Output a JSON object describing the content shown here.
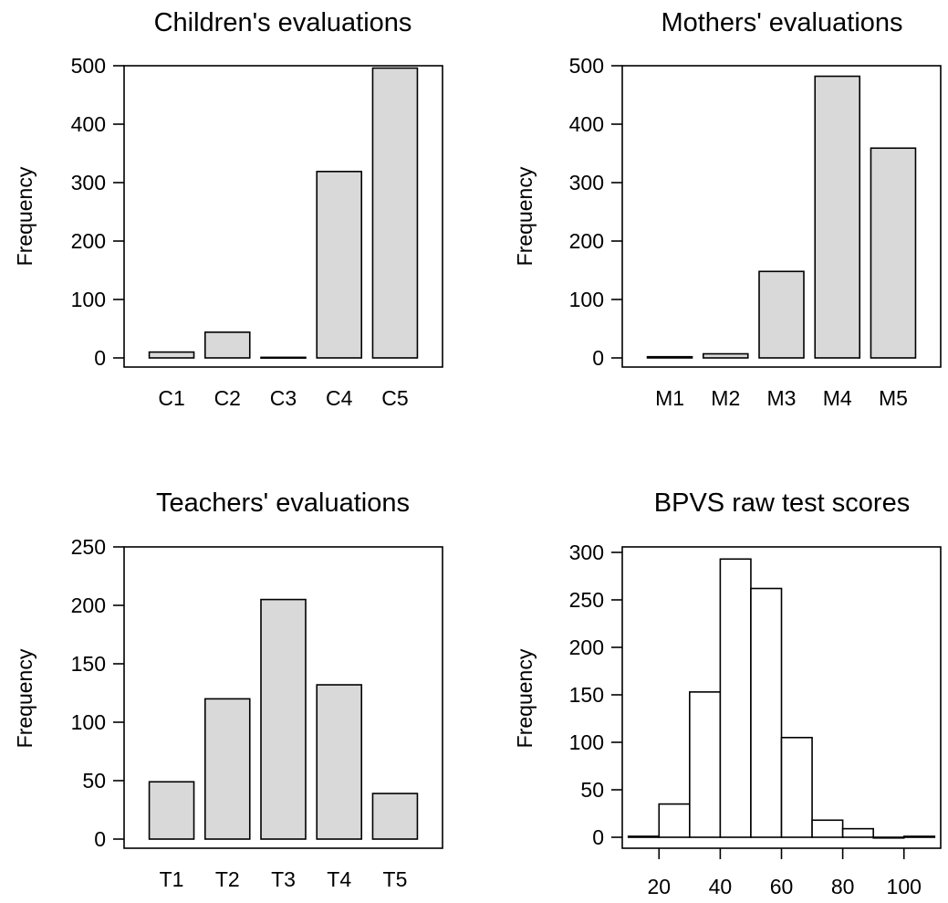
{
  "chart_data": [
    {
      "type": "bar",
      "title": "Children's evaluations",
      "ylabel": "Frequency",
      "xlabel": "",
      "categories": [
        "C1",
        "C2",
        "C3",
        "C4",
        "C5"
      ],
      "values": [
        10,
        44,
        1,
        319,
        496
      ],
      "ylim": [
        0,
        500
      ],
      "yticks": [
        0,
        100,
        200,
        300,
        400,
        500
      ],
      "bar_fill": "#d9d9d9"
    },
    {
      "type": "bar",
      "title": "Mothers' evaluations",
      "ylabel": "Frequency",
      "xlabel": "",
      "categories": [
        "M1",
        "M2",
        "M3",
        "M4",
        "M5"
      ],
      "values": [
        2,
        7,
        148,
        482,
        359
      ],
      "ylim": [
        0,
        500
      ],
      "yticks": [
        0,
        100,
        200,
        300,
        400,
        500
      ],
      "bar_fill": "#d9d9d9"
    },
    {
      "type": "bar",
      "title": "Teachers' evaluations",
      "ylabel": "Frequency",
      "xlabel": "",
      "categories": [
        "T1",
        "T2",
        "T3",
        "T4",
        "T5"
      ],
      "values": [
        49,
        120,
        205,
        132,
        39
      ],
      "ylim": [
        0,
        250
      ],
      "yticks": [
        0,
        50,
        100,
        150,
        200,
        250
      ],
      "bar_fill": "#d9d9d9"
    },
    {
      "type": "histogram",
      "title": "BPVS raw test scores",
      "ylabel": "Frequency",
      "xlabel": "",
      "bins": [
        {
          "x0": 10,
          "x1": 20,
          "count": 1
        },
        {
          "x0": 20,
          "x1": 30,
          "count": 35
        },
        {
          "x0": 30,
          "x1": 40,
          "count": 153
        },
        {
          "x0": 40,
          "x1": 50,
          "count": 293
        },
        {
          "x0": 50,
          "x1": 60,
          "count": 262
        },
        {
          "x0": 60,
          "x1": 70,
          "count": 105
        },
        {
          "x0": 70,
          "x1": 80,
          "count": 18
        },
        {
          "x0": 80,
          "x1": 90,
          "count": 9
        },
        {
          "x0": 90,
          "x1": 100,
          "count": 0
        },
        {
          "x0": 100,
          "x1": 110,
          "count": 1
        }
      ],
      "xlim": [
        8,
        112
      ],
      "xticks": [
        20,
        40,
        60,
        80,
        100
      ],
      "ylim": [
        0,
        300
      ],
      "yticks": [
        0,
        50,
        100,
        150,
        200,
        250,
        300
      ],
      "bar_fill": "#ffffff"
    }
  ]
}
